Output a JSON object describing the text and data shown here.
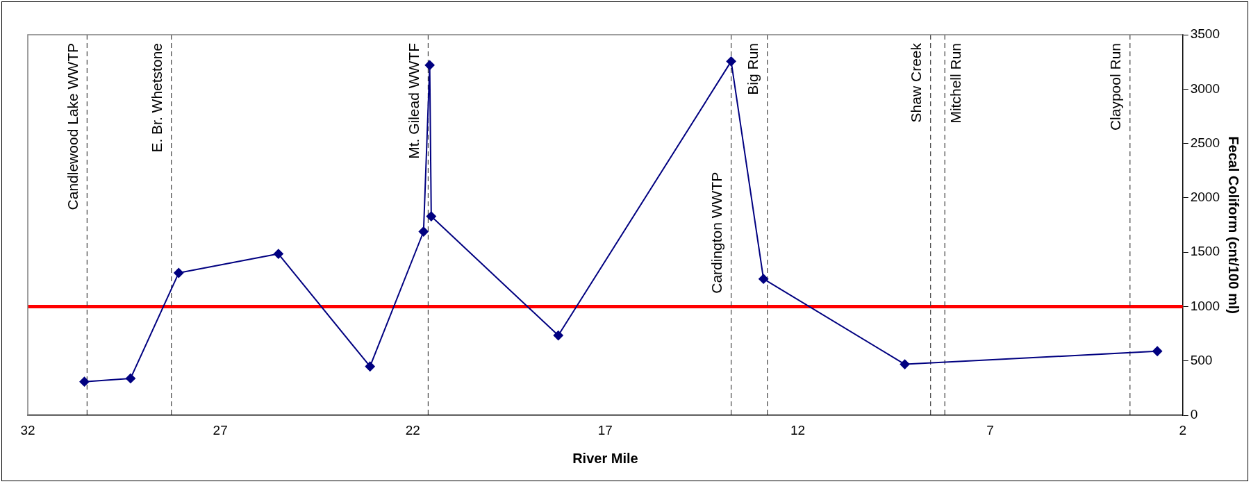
{
  "chart_data": {
    "type": "line",
    "xlabel": "River Mile",
    "ylabel": "Fecal Coliform (cnt/100 ml)",
    "xlim": [
      32,
      2
    ],
    "xticks": [
      32,
      27,
      22,
      17,
      12,
      7,
      2
    ],
    "ylim": [
      0,
      3500
    ],
    "yticks": [
      0,
      500,
      1000,
      1500,
      2000,
      2500,
      3000,
      3500
    ],
    "grid": false,
    "legend": false,
    "marker": "diamond",
    "line_style": "solid",
    "series": [
      {
        "color": "#000080",
        "x": [
          30.53,
          29.33,
          28.08,
          25.49,
          23.11,
          21.72,
          21.56,
          21.52,
          18.22,
          13.73,
          12.89,
          9.22,
          2.66
        ],
        "values": [
          310,
          340,
          1310,
          1485,
          450,
          1690,
          3220,
          1830,
          735,
          3255,
          1255,
          470,
          590
        ]
      }
    ],
    "ref_lines": [
      {
        "axis": "y",
        "value": 1000,
        "label": null,
        "color": "#ff0000",
        "line_style": "solid"
      },
      {
        "axis": "x",
        "value": 30.46,
        "label": "Candlewood Lake WWTP",
        "color": "#404040",
        "line_style": "dashed"
      },
      {
        "axis": "x",
        "value": 28.27,
        "label": "E. Br. Whetstone",
        "color": "#404040",
        "line_style": "dashed"
      },
      {
        "axis": "x",
        "value": 21.6,
        "label": "Mt. Gilead WWTF",
        "color": "#404040",
        "line_style": "dashed"
      },
      {
        "axis": "x",
        "value": 13.73,
        "label": "Cardington WWTP",
        "color": "#404040",
        "line_style": "dashed"
      },
      {
        "axis": "x",
        "value": 12.79,
        "label": "Big Run",
        "color": "#404040",
        "line_style": "dashed"
      },
      {
        "axis": "x",
        "value": 8.55,
        "label": "Shaw Creek",
        "color": "#404040",
        "line_style": "dashed"
      },
      {
        "axis": "x",
        "value": 8.18,
        "label": "Mitchell Run",
        "color": "#404040",
        "line_style": "dashed"
      },
      {
        "axis": "x",
        "value": 3.37,
        "label": "Claypool Run",
        "color": "#404040",
        "line_style": "dashed"
      }
    ]
  }
}
